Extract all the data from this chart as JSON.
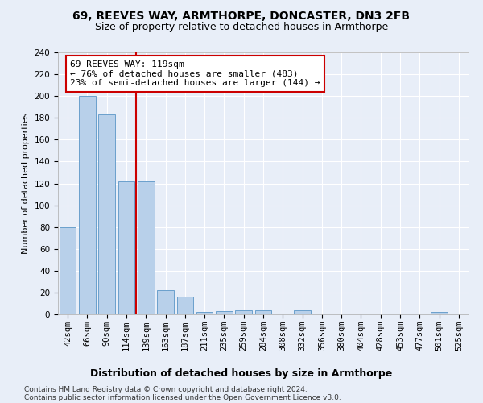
{
  "title1": "69, REEVES WAY, ARMTHORPE, DONCASTER, DN3 2FB",
  "title2": "Size of property relative to detached houses in Armthorpe",
  "xlabel": "Distribution of detached houses by size in Armthorpe",
  "ylabel": "Number of detached properties",
  "categories": [
    "42sqm",
    "66sqm",
    "90sqm",
    "114sqm",
    "139sqm",
    "163sqm",
    "187sqm",
    "211sqm",
    "235sqm",
    "259sqm",
    "284sqm",
    "308sqm",
    "332sqm",
    "356sqm",
    "380sqm",
    "404sqm",
    "428sqm",
    "453sqm",
    "477sqm",
    "501sqm",
    "525sqm"
  ],
  "values": [
    80,
    200,
    183,
    122,
    122,
    22,
    16,
    2,
    3,
    4,
    4,
    0,
    4,
    0,
    0,
    0,
    0,
    0,
    0,
    2,
    0
  ],
  "bar_color": "#b8d0ea",
  "bar_edge_color": "#6aa0cc",
  "vline_pos": 3.5,
  "annotation_text": "69 REEVES WAY: 119sqm\n← 76% of detached houses are smaller (483)\n23% of semi-detached houses are larger (144) →",
  "ylim": [
    0,
    240
  ],
  "yticks": [
    0,
    20,
    40,
    60,
    80,
    100,
    120,
    140,
    160,
    180,
    200,
    220,
    240
  ],
  "footnote1": "Contains HM Land Registry data © Crown copyright and database right 2024.",
  "footnote2": "Contains public sector information licensed under the Open Government Licence v3.0.",
  "bg_color": "#e8eef8",
  "plot_bg_color": "#e8eef8",
  "grid_color": "#ffffff",
  "vline_color": "#cc0000",
  "annotation_box_color": "#cc0000",
  "title1_fontsize": 10,
  "title2_fontsize": 9,
  "xlabel_fontsize": 9,
  "ylabel_fontsize": 8,
  "tick_fontsize": 7.5,
  "annotation_fontsize": 8,
  "footnote_fontsize": 6.5
}
